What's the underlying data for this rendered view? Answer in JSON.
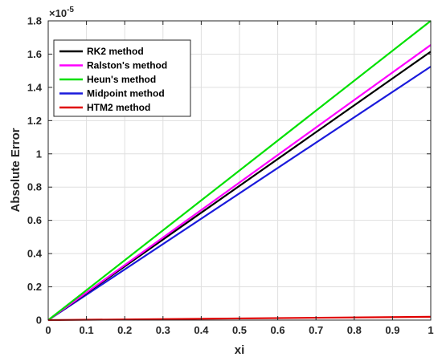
{
  "chart_data": {
    "type": "line",
    "xlabel": "xi",
    "ylabel": "Absolute Error",
    "y_exponent_base": "×10",
    "y_exponent": "-5",
    "xlim": [
      0,
      1
    ],
    "ylim": [
      0,
      1.8
    ],
    "x_ticks": [
      "0",
      "0.1",
      "0.2",
      "0.3",
      "0.4",
      "0.5",
      "0.6",
      "0.7",
      "0.8",
      "0.9",
      "1"
    ],
    "y_ticks": [
      "0",
      "0.2",
      "0.4",
      "0.6",
      "0.8",
      "1",
      "1.2",
      "1.4",
      "1.6",
      "1.8"
    ],
    "grid": true,
    "legend_position": "top-left",
    "x": [
      0,
      1
    ],
    "series": [
      {
        "name": "RK2 method",
        "color": "#000000",
        "values": [
          0,
          1.615
        ]
      },
      {
        "name": "Ralston's method",
        "color": "#ff00ff",
        "values": [
          0,
          1.655
        ]
      },
      {
        "name": "Heun's method",
        "color": "#00e000",
        "values": [
          0,
          1.8
        ]
      },
      {
        "name": "Midpoint method",
        "color": "#1a1adc",
        "values": [
          0,
          1.525
        ]
      },
      {
        "name": "HTM2 method",
        "color": "#e00000",
        "values": [
          0,
          0.02
        ]
      }
    ]
  }
}
